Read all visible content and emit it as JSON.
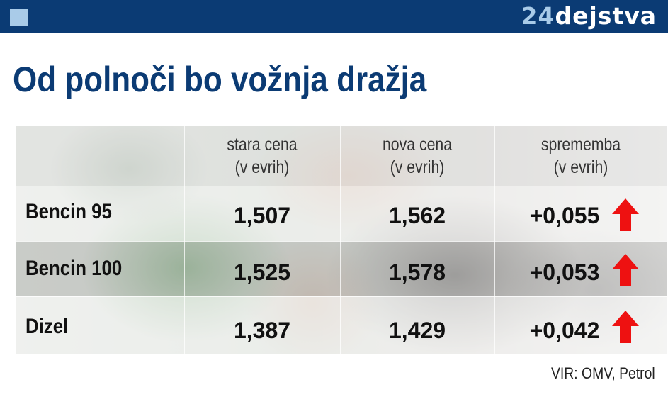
{
  "header": {
    "logo_number": "24",
    "logo_word": "dejstva",
    "accent_color": "#0b3b74",
    "light_color": "#a9cbe8"
  },
  "title": "Od polnoči bo vožnja dražja",
  "chart_data": {
    "type": "table",
    "columns": [
      {
        "line1": "",
        "line2": ""
      },
      {
        "line1": "stara cena",
        "line2": "(v evrih)"
      },
      {
        "line1": "nova cena",
        "line2": "(v evrih)"
      },
      {
        "line1": "sprememba",
        "line2": "(v evrih)"
      }
    ],
    "rows": [
      {
        "label": "Bencin 95",
        "old": "1,507",
        "new": "1,562",
        "change": "+0,055",
        "direction": "up"
      },
      {
        "label": "Bencin 100",
        "old": "1,525",
        "new": "1,578",
        "change": "+0,053",
        "direction": "up"
      },
      {
        "label": "Dizel",
        "old": "1,387",
        "new": "1,429",
        "change": "+0,042",
        "direction": "up"
      }
    ],
    "arrow_color": "#ee1111"
  },
  "source": "VIR: OMV, Petrol"
}
